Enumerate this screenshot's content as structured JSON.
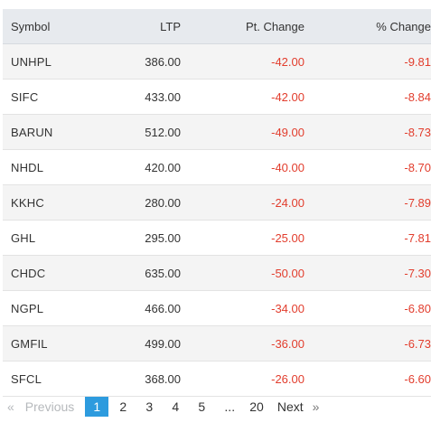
{
  "table": {
    "headers": {
      "symbol": "Symbol",
      "ltp": "LTP",
      "pt_change": "Pt. Change",
      "pct_change": "% Change"
    },
    "rows": [
      {
        "symbol": "UNHPL",
        "ltp": "386.00",
        "pt_change": "-42.00",
        "pct_change": "-9.81"
      },
      {
        "symbol": "SIFC",
        "ltp": "433.00",
        "pt_change": "-42.00",
        "pct_change": "-8.84"
      },
      {
        "symbol": "BARUN",
        "ltp": "512.00",
        "pt_change": "-49.00",
        "pct_change": "-8.73"
      },
      {
        "symbol": "NHDL",
        "ltp": "420.00",
        "pt_change": "-40.00",
        "pct_change": "-8.70"
      },
      {
        "symbol": "KKHC",
        "ltp": "280.00",
        "pt_change": "-24.00",
        "pct_change": "-7.89"
      },
      {
        "symbol": "GHL",
        "ltp": "295.00",
        "pt_change": "-25.00",
        "pct_change": "-7.81"
      },
      {
        "symbol": "CHDC",
        "ltp": "635.00",
        "pt_change": "-50.00",
        "pct_change": "-7.30"
      },
      {
        "symbol": "NGPL",
        "ltp": "466.00",
        "pt_change": "-34.00",
        "pct_change": "-6.80"
      },
      {
        "symbol": "GMFIL",
        "ltp": "499.00",
        "pt_change": "-36.00",
        "pct_change": "-6.73"
      },
      {
        "symbol": "SFCL",
        "ltp": "368.00",
        "pt_change": "-26.00",
        "pct_change": "-6.60"
      }
    ]
  },
  "pagination": {
    "prev_arrow": "«",
    "prev_label": "Previous",
    "pages": [
      "1",
      "2",
      "3",
      "4",
      "5"
    ],
    "active_page": "1",
    "ellipsis": "...",
    "last_page": "20",
    "next_label": "Next",
    "next_arrow": "»"
  },
  "colors": {
    "negative": "#e23d2d",
    "header_bg": "#e7eaee",
    "active_page_bg": "#2d9bde",
    "disabled_text": "#b6b9bc"
  }
}
